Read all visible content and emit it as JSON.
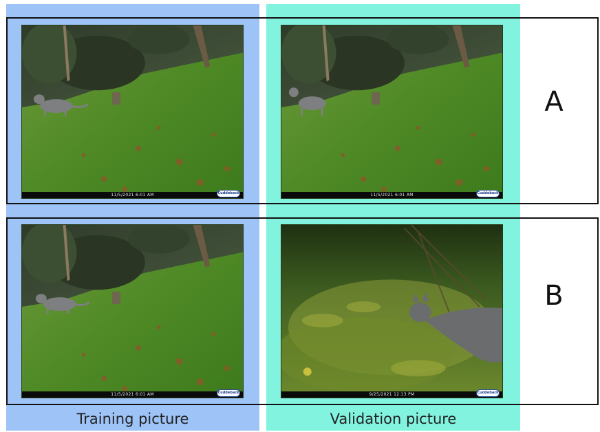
{
  "columns": {
    "training_caption": "Training picture",
    "validation_caption": "Validation picture"
  },
  "rows": [
    {
      "label": "A",
      "training_stamp": "11/5/2021   6:01 AM",
      "validation_stamp": "11/5/2021   6:01 AM"
    },
    {
      "label": "B",
      "training_stamp": "11/5/2021   6:01 AM",
      "validation_stamp": "9/25/2021   12:13 PM"
    }
  ],
  "camera_brand": "Cuddeback",
  "colors": {
    "training_column": "#9dc3f7",
    "validation_column": "#82f3df",
    "frame": "#111111"
  }
}
